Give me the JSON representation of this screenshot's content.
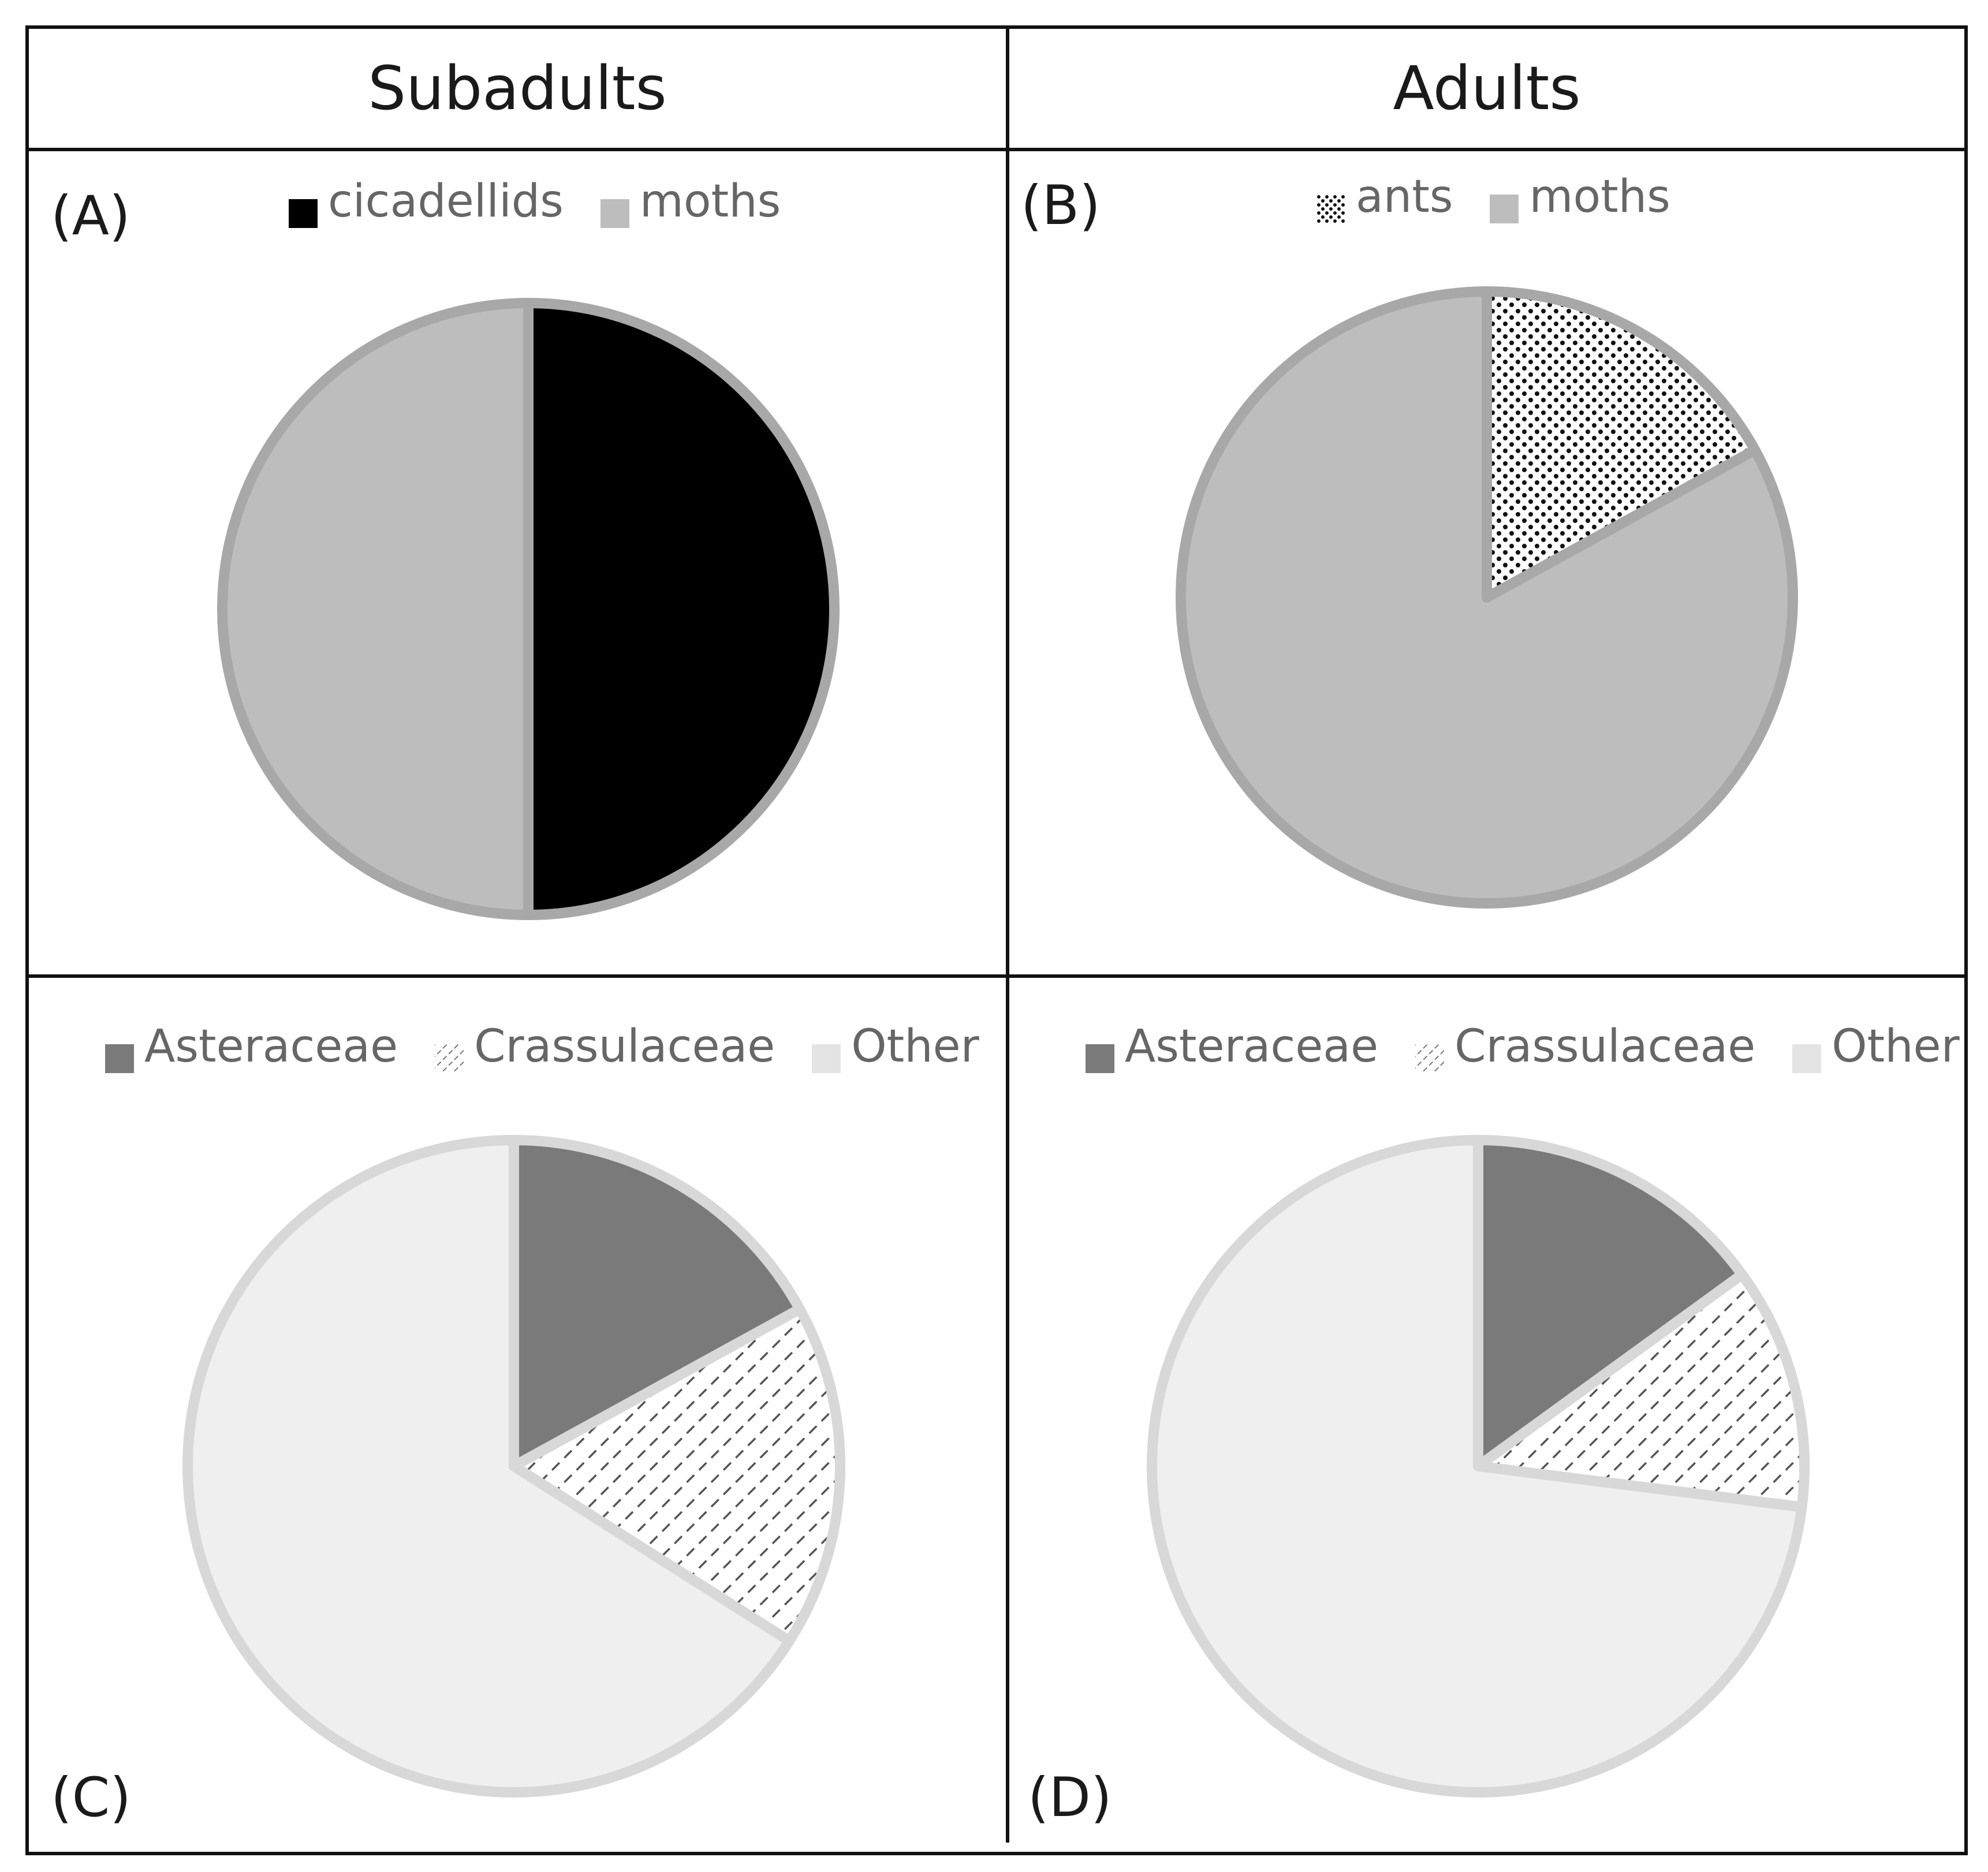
{
  "headers": {
    "left": "Subadults",
    "right": "Adults"
  },
  "chart_data": [
    {
      "type": "pie",
      "panel": "(A)",
      "legend_position": "top",
      "slices": [
        {
          "label": "cicadellids",
          "value": 50,
          "color": "#000000",
          "pattern": "solid"
        },
        {
          "label": "moths",
          "value": 50,
          "color": "#bdbdbd",
          "pattern": "solid"
        }
      ]
    },
    {
      "type": "pie",
      "panel": "(B)",
      "legend_position": "top",
      "slices": [
        {
          "label": "ants",
          "value": 17,
          "color": "#ffffff",
          "pattern": "dots"
        },
        {
          "label": "moths",
          "value": 83,
          "color": "#bdbdbd",
          "pattern": "solid"
        }
      ]
    },
    {
      "type": "pie",
      "panel": "(C)",
      "legend_position": "top",
      "slices": [
        {
          "label": "Asteraceae",
          "value": 17,
          "color": "#7a7a7a",
          "pattern": "solid"
        },
        {
          "label": "Crassulaceae",
          "value": 17,
          "color": "#ffffff",
          "pattern": "hatch"
        },
        {
          "label": "Other",
          "value": 66,
          "color": "#efefef",
          "pattern": "solid"
        }
      ]
    },
    {
      "type": "pie",
      "panel": "(D)",
      "legend_position": "top",
      "slices": [
        {
          "label": "Asteraceae",
          "value": 15,
          "color": "#7a7a7a",
          "pattern": "solid"
        },
        {
          "label": "Crassulaceae",
          "value": 12,
          "color": "#ffffff",
          "pattern": "hatch"
        },
        {
          "label": "Other",
          "value": 73,
          "color": "#efefef",
          "pattern": "solid"
        }
      ]
    }
  ]
}
